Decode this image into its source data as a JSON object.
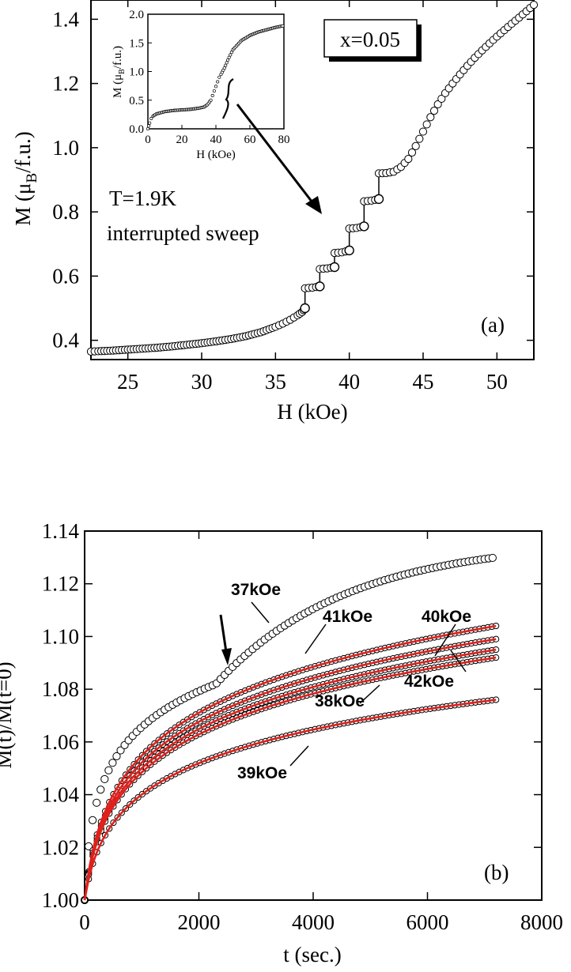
{
  "chart_data": [
    {
      "type": "scatter",
      "panel_label": "(a)",
      "xlabel": "H (kOe)",
      "ylabel_main": "M (μ",
      "ylabel_sub": "B",
      "ylabel_tail": "/f.u.)",
      "xlim": [
        22.5,
        52.5
      ],
      "ylim": [
        0.34,
        1.46
      ],
      "xticks": [
        25,
        30,
        35,
        40,
        45,
        50
      ],
      "yticks": [
        0.4,
        0.6,
        0.8,
        1.0,
        1.2,
        1.4
      ],
      "ytick_labels": [
        "0.4",
        "0.6",
        "0.8",
        "1.0",
        "1.2",
        "1.4"
      ],
      "annotations": {
        "composition": "x=0.05",
        "temperature": "T=1.9K",
        "mode": "interrupted sweep"
      },
      "series": [
        {
          "points": [
            [
              22.5,
              0.365
            ],
            [
              23,
              0.366
            ],
            [
              24,
              0.368
            ],
            [
              25,
              0.371
            ],
            [
              26,
              0.374
            ],
            [
              27,
              0.377
            ],
            [
              28,
              0.381
            ],
            [
              29,
              0.386
            ],
            [
              30,
              0.391
            ],
            [
              31,
              0.397
            ],
            [
              32,
              0.404
            ],
            [
              33,
              0.413
            ],
            [
              34,
              0.425
            ],
            [
              35,
              0.442
            ],
            [
              35.5,
              0.452
            ],
            [
              36,
              0.464
            ],
            [
              36.5,
              0.478
            ],
            [
              36.8,
              0.488
            ],
            [
              37,
              0.5
            ],
            [
              37,
              0.562
            ],
            [
              37.5,
              0.564
            ],
            [
              38,
              0.568
            ],
            [
              38,
              0.622
            ],
            [
              38.5,
              0.624
            ],
            [
              39,
              0.628
            ],
            [
              39,
              0.672
            ],
            [
              39.5,
              0.674
            ],
            [
              40,
              0.68
            ],
            [
              40,
              0.748
            ],
            [
              40.5,
              0.75
            ],
            [
              41,
              0.755
            ],
            [
              41,
              0.833
            ],
            [
              41.5,
              0.835
            ],
            [
              42,
              0.84
            ],
            [
              42,
              0.92
            ],
            [
              42.5,
              0.921
            ],
            [
              43,
              0.925
            ],
            [
              43.5,
              0.94
            ],
            [
              44,
              0.965
            ],
            [
              44.5,
              1.005
            ],
            [
              45,
              1.05
            ],
            [
              45.5,
              1.095
            ],
            [
              46,
              1.135
            ],
            [
              46.5,
              1.17
            ],
            [
              47,
              1.2
            ],
            [
              47.5,
              1.228
            ],
            [
              48,
              1.255
            ],
            [
              48.5,
              1.28
            ],
            [
              49,
              1.303
            ],
            [
              49.5,
              1.325
            ],
            [
              50,
              1.346
            ],
            [
              50.5,
              1.366
            ],
            [
              51,
              1.386
            ],
            [
              51.5,
              1.405
            ],
            [
              52,
              1.425
            ],
            [
              52.5,
              1.445
            ]
          ]
        }
      ],
      "inset": {
        "xlabel": "H (kOe)",
        "ylabel_main": "M (μ",
        "ylabel_sub": "B",
        "ylabel_tail": "/f.u.)",
        "xlim": [
          0,
          80
        ],
        "ylim": [
          0,
          2.0
        ],
        "xticks": [
          0,
          20,
          40,
          60,
          80
        ],
        "yticks": [
          0,
          0.5,
          1.0,
          1.5,
          2.0
        ],
        "ytick_labels": [
          "0.0",
          "0.5",
          "1.0",
          "1.5",
          "2.0"
        ],
        "points": [
          [
            0,
            0
          ],
          [
            0.5,
            0.05
          ],
          [
            1,
            0.1
          ],
          [
            2,
            0.18
          ],
          [
            3,
            0.22
          ],
          [
            5,
            0.26
          ],
          [
            10,
            0.3
          ],
          [
            15,
            0.32
          ],
          [
            20,
            0.33
          ],
          [
            25,
            0.34
          ],
          [
            30,
            0.36
          ],
          [
            33,
            0.38
          ],
          [
            35,
            0.42
          ],
          [
            37,
            0.5
          ],
          [
            38,
            0.58
          ],
          [
            39,
            0.66
          ],
          [
            40,
            0.74
          ],
          [
            41,
            0.82
          ],
          [
            42,
            0.9
          ],
          [
            43,
            0.95
          ],
          [
            45,
            1.06
          ],
          [
            47,
            1.2
          ],
          [
            50,
            1.38
          ],
          [
            55,
            1.54
          ],
          [
            60,
            1.63
          ],
          [
            65,
            1.69
          ],
          [
            70,
            1.73
          ],
          [
            75,
            1.77
          ],
          [
            80,
            1.8
          ]
        ]
      }
    },
    {
      "type": "scatter",
      "panel_label": "(b)",
      "xlabel": "t (sec.)",
      "ylabel": "M(t)/M(t=0)",
      "xlim": [
        0,
        8000
      ],
      "ylim": [
        1.0,
        1.14
      ],
      "xticks": [
        0,
        2000,
        4000,
        6000,
        8000
      ],
      "yticks": [
        1.0,
        1.02,
        1.04,
        1.06,
        1.08,
        1.1,
        1.12,
        1.14
      ],
      "ytick_labels": [
        "1.00",
        "1.02",
        "1.04",
        "1.06",
        "1.08",
        "1.10",
        "1.12",
        "1.14"
      ],
      "fit_color": "#e0201b",
      "series": [
        {
          "name": "37kOe",
          "amplitude": 0.0775,
          "fit": false,
          "final": 1.13
        },
        {
          "name": "41kOe",
          "amplitude": 0.0915,
          "fit": true,
          "final": 1.104
        },
        {
          "name": "40kOe",
          "amplitude": 0.0875,
          "fit": true,
          "final": 1.099
        },
        {
          "name": "42kOe",
          "amplitude": 0.0855,
          "fit": true,
          "final": 1.095
        },
        {
          "name": "38kOe",
          "amplitude": 0.0825,
          "fit": true,
          "final": 1.092
        },
        {
          "name": "39kOe",
          "amplitude": 0.0675,
          "fit": true,
          "final": 1.076
        }
      ],
      "curve_labels": [
        "37kOe",
        "41kOe",
        "40kOe",
        "42kOe",
        "38kOe",
        "39kOe"
      ]
    }
  ]
}
